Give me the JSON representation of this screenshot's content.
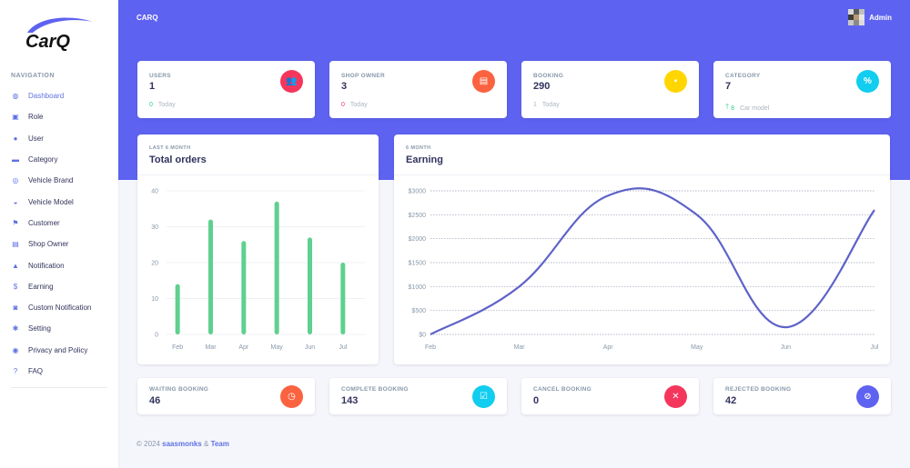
{
  "sidebar": {
    "logo_text": "CarQ",
    "heading": "NAVIGATION",
    "items": [
      {
        "label": "Dashboard",
        "icon": "dashboard-icon",
        "glyph": "◍",
        "active": true
      },
      {
        "label": "Role",
        "icon": "role-icon",
        "glyph": "▣"
      },
      {
        "label": "User",
        "icon": "user-icon",
        "glyph": "●"
      },
      {
        "label": "Category",
        "icon": "folder-icon",
        "glyph": "▬"
      },
      {
        "label": "Vehicle Brand",
        "icon": "target-icon",
        "glyph": "◎"
      },
      {
        "label": "Vehicle Model",
        "icon": "car-icon",
        "glyph": "◒"
      },
      {
        "label": "Customer",
        "icon": "flag-icon",
        "glyph": "⚑"
      },
      {
        "label": "Shop Owner",
        "icon": "store-icon",
        "glyph": "▤"
      },
      {
        "label": "Notification",
        "icon": "bell-icon",
        "glyph": "▲"
      },
      {
        "label": "Earning",
        "icon": "dollar-icon",
        "glyph": "$"
      },
      {
        "label": "Custom Notification",
        "icon": "truck-icon",
        "glyph": "◙"
      },
      {
        "label": "Setting",
        "icon": "gear-icon",
        "glyph": "✱"
      },
      {
        "label": "Privacy and Policy",
        "icon": "eye-icon",
        "glyph": "◉"
      },
      {
        "label": "FAQ",
        "icon": "question-icon",
        "glyph": "?"
      }
    ]
  },
  "header": {
    "brand": "CARQ",
    "user_name": "Admin"
  },
  "stats": [
    {
      "title": "USERS",
      "value": "1",
      "foot_num": "0",
      "foot_text": "Today",
      "icon": "users-icon",
      "glyph": "👥",
      "color": "#f5365c",
      "num_color": "#2dce89"
    },
    {
      "title": "SHOP OWNER",
      "value": "3",
      "foot_num": "0",
      "foot_text": "Today",
      "icon": "shop-icon",
      "glyph": "▤",
      "color": "#fb6340",
      "num_color": "#f5365c"
    },
    {
      "title": "BOOKING",
      "value": "290",
      "foot_num": "1",
      "foot_text": "Today",
      "icon": "briefcase-icon",
      "glyph": "▪",
      "color": "#ffd600",
      "num_color": "#adb5bd"
    },
    {
      "title": "CATEGORY",
      "value": "7",
      "foot_num": "8",
      "foot_text": "Car model",
      "icon": "percent-icon",
      "glyph": "%",
      "color": "#11cdef",
      "num_color": "#2dce89",
      "arrow": "🡑"
    }
  ],
  "orders_chart": {
    "subtitle": "LAST 6 MONTH",
    "title": "Total orders"
  },
  "earning_chart": {
    "subtitle": "6 MONTH",
    "title": "Earning"
  },
  "chart_data": [
    {
      "type": "bar",
      "title": "Total orders",
      "categories": [
        "Feb",
        "Mar",
        "Apr",
        "May",
        "Jun",
        "Jul"
      ],
      "values": [
        14,
        32,
        26,
        37,
        27,
        20
      ],
      "ylim": [
        0,
        40
      ],
      "yticks": [
        0,
        10,
        20,
        30,
        40
      ],
      "color": "#5fd08f",
      "grid": true
    },
    {
      "type": "line",
      "title": "Earning",
      "x": [
        "Feb",
        "Mar",
        "Apr",
        "May",
        "Jun",
        "Jul"
      ],
      "values": [
        0,
        1000,
        2900,
        2500,
        150,
        2600
      ],
      "ylim": [
        0,
        3000
      ],
      "yticks": [
        "$0",
        "$500",
        "$1000",
        "$1500",
        "$2000",
        "$2500",
        "$3000"
      ],
      "color": "#5e62c8",
      "grid": true
    }
  ],
  "bookings": [
    {
      "title": "WAITING BOOKING",
      "value": "46",
      "icon": "clock-icon",
      "glyph": "◷",
      "color": "#fb6340"
    },
    {
      "title": "COMPLETE BOOKING",
      "value": "143",
      "icon": "check-icon",
      "glyph": "☑",
      "color": "#11cdef"
    },
    {
      "title": "CANCEL BOOKING",
      "value": "0",
      "icon": "close-icon",
      "glyph": "✕",
      "color": "#f5365c"
    },
    {
      "title": "REJECTED BOOKING",
      "value": "42",
      "icon": "ban-icon",
      "glyph": "⊘",
      "color": "#5e62f0"
    }
  ],
  "footer": {
    "copyright": "© 2024",
    "company": "saasmonks",
    "amp": "&",
    "team": "Team"
  }
}
